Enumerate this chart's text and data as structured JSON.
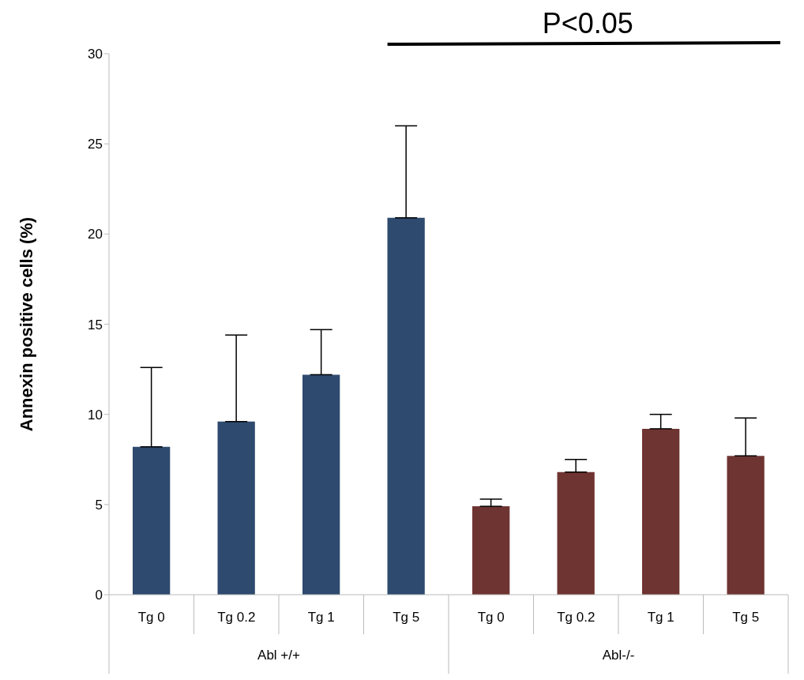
{
  "chart_data": {
    "type": "bar",
    "ylabel": "Annexin positive cells (%)",
    "categories": [
      "Tg 0",
      "Tg 0.2",
      "Tg 1",
      "Tg 5",
      "Tg 0",
      "Tg 0.2",
      "Tg 1",
      "Tg 5"
    ],
    "values": [
      8.2,
      9.6,
      12.2,
      20.9,
      4.9,
      6.8,
      9.2,
      7.7
    ],
    "colors": [
      "#2e4a6e",
      "#2e4a6e",
      "#2e4a6e",
      "#2e4a6e",
      "#6e3432",
      "#6e3432",
      "#6e3432",
      "#6e3432"
    ],
    "errors": [
      [
        8.2,
        12.6
      ],
      [
        9.6,
        14.4
      ],
      [
        12.2,
        14.7
      ],
      [
        20.9,
        26.0
      ],
      [
        4.9,
        5.3
      ],
      [
        6.8,
        7.5
      ],
      [
        9.2,
        10.0
      ],
      [
        7.7,
        9.8
      ]
    ],
    "ylim": [
      0,
      30
    ],
    "yticks": [
      0,
      5,
      10,
      15,
      20,
      25,
      30
    ],
    "annotations": [
      "P<0.05",
      "Abl +/+",
      "Abl-/-"
    ]
  }
}
